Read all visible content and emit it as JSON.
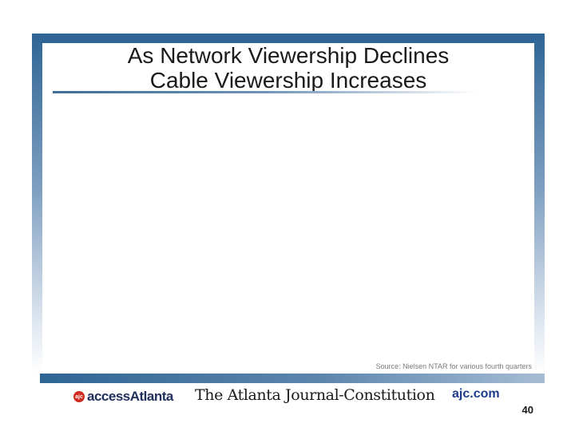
{
  "slide": {
    "title_line1": "As Network Viewership Declines",
    "title_line2": "Cable Viewership Increases",
    "source": "Source:  Nielsen NTAR for various fourth quarters",
    "page_number": "40"
  },
  "footer": {
    "access_atlanta": "accessAtlanta",
    "ajc_newspaper": "The Atlanta Journal-Constitution",
    "ajc_com": "ajc.com"
  },
  "colors": {
    "frame_blue": "#2e6594",
    "access_red": "#cf2a1f",
    "ajc_blue": "#1f3c8c"
  }
}
